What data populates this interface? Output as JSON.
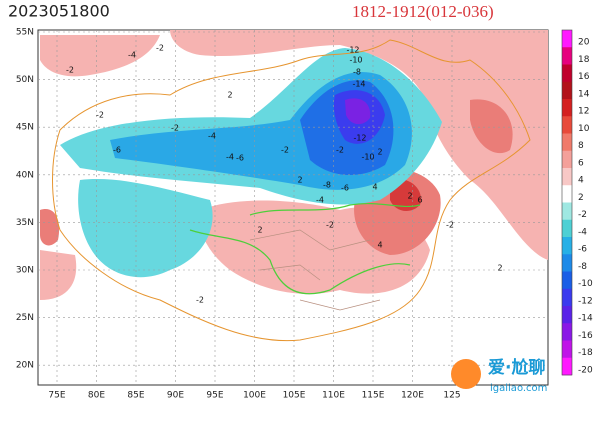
{
  "header": {
    "date": "2023051800",
    "range": "1812-1912(012-036)"
  },
  "lat_labels": [
    "55N",
    "50N",
    "45N",
    "40N",
    "35N",
    "30N",
    "25N",
    "20N"
  ],
  "lon_labels": [
    "75E",
    "80E",
    "85E",
    "90E",
    "95E",
    "100E",
    "105E",
    "110E",
    "115E",
    "120E",
    "125"
  ],
  "colorbar": {
    "labels": [
      20,
      18,
      16,
      14,
      12,
      10,
      8,
      6,
      4,
      2,
      -2,
      -4,
      -6,
      -8,
      -10,
      -12,
      -14,
      -16,
      -18,
      -20
    ]
  },
  "contour_labels": [
    "-2",
    "-4",
    "-2",
    "-2",
    "-2",
    "-4",
    "-6",
    "-4",
    "-6",
    "-2",
    "-2",
    "-12",
    "-10",
    "-8",
    "-14",
    "-12",
    "-10",
    "-8",
    "-6",
    "-4",
    "2",
    "4",
    "2",
    "-2",
    "2",
    "-2",
    "2",
    "4",
    "6",
    "2",
    "-2",
    "2"
  ],
  "watermark": {
    "name": "爱·尬聊",
    "site": "igaliao.com"
  }
}
